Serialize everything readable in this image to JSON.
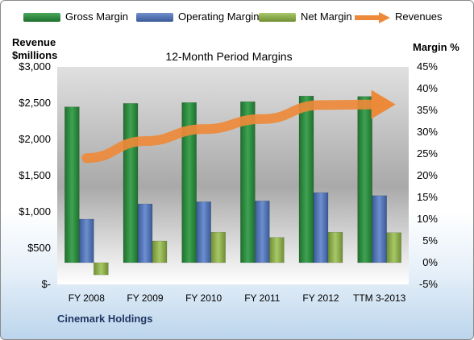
{
  "legend": {
    "gross": "Gross Margin",
    "operating": "Operating Margin",
    "net": "Net Margin",
    "revenues": "Revenues"
  },
  "left_axis_title": [
    "Revenue",
    "$millions"
  ],
  "right_axis_title": "Margin %",
  "company": "Cinemark Holdings",
  "colors": {
    "gross": "#2e8b3e",
    "operating": "#4f6fb0",
    "net": "#8fb04a",
    "revenues": "#ed8a3a"
  },
  "chart_data": {
    "type": "bar",
    "title": "12-Month Period Margins",
    "categories": [
      "FY 2008",
      "FY 2009",
      "FY 2010",
      "FY 2011",
      "FY 2012",
      "TTM 3-2013"
    ],
    "series": [
      {
        "name": "Gross Margin",
        "axis": "right",
        "values": [
          35.8,
          36.6,
          36.8,
          37.0,
          38.3,
          38.2
        ]
      },
      {
        "name": "Operating Margin",
        "axis": "right",
        "values": [
          10.0,
          13.5,
          14.0,
          14.2,
          16.1,
          15.4
        ]
      },
      {
        "name": "Net Margin",
        "axis": "right",
        "values": [
          -2.8,
          5.0,
          7.0,
          5.8,
          7.0,
          6.9
        ]
      },
      {
        "name": "Revenues",
        "axis": "left",
        "type": "line",
        "values": [
          1742,
          1976,
          2141,
          2280,
          2473,
          2482
        ]
      }
    ],
    "left_axis": {
      "ylim": [
        0,
        3000
      ],
      "ticks": [
        "$-",
        "$500",
        "$1,000",
        "$1,500",
        "$2,000",
        "$2,500",
        "$3,000"
      ]
    },
    "right_axis": {
      "ylim": [
        -5,
        45
      ],
      "ticks": [
        "-5%",
        "0%",
        "5%",
        "10%",
        "15%",
        "20%",
        "25%",
        "30%",
        "35%",
        "40%",
        "45%"
      ]
    },
    "legend_position": "top"
  }
}
